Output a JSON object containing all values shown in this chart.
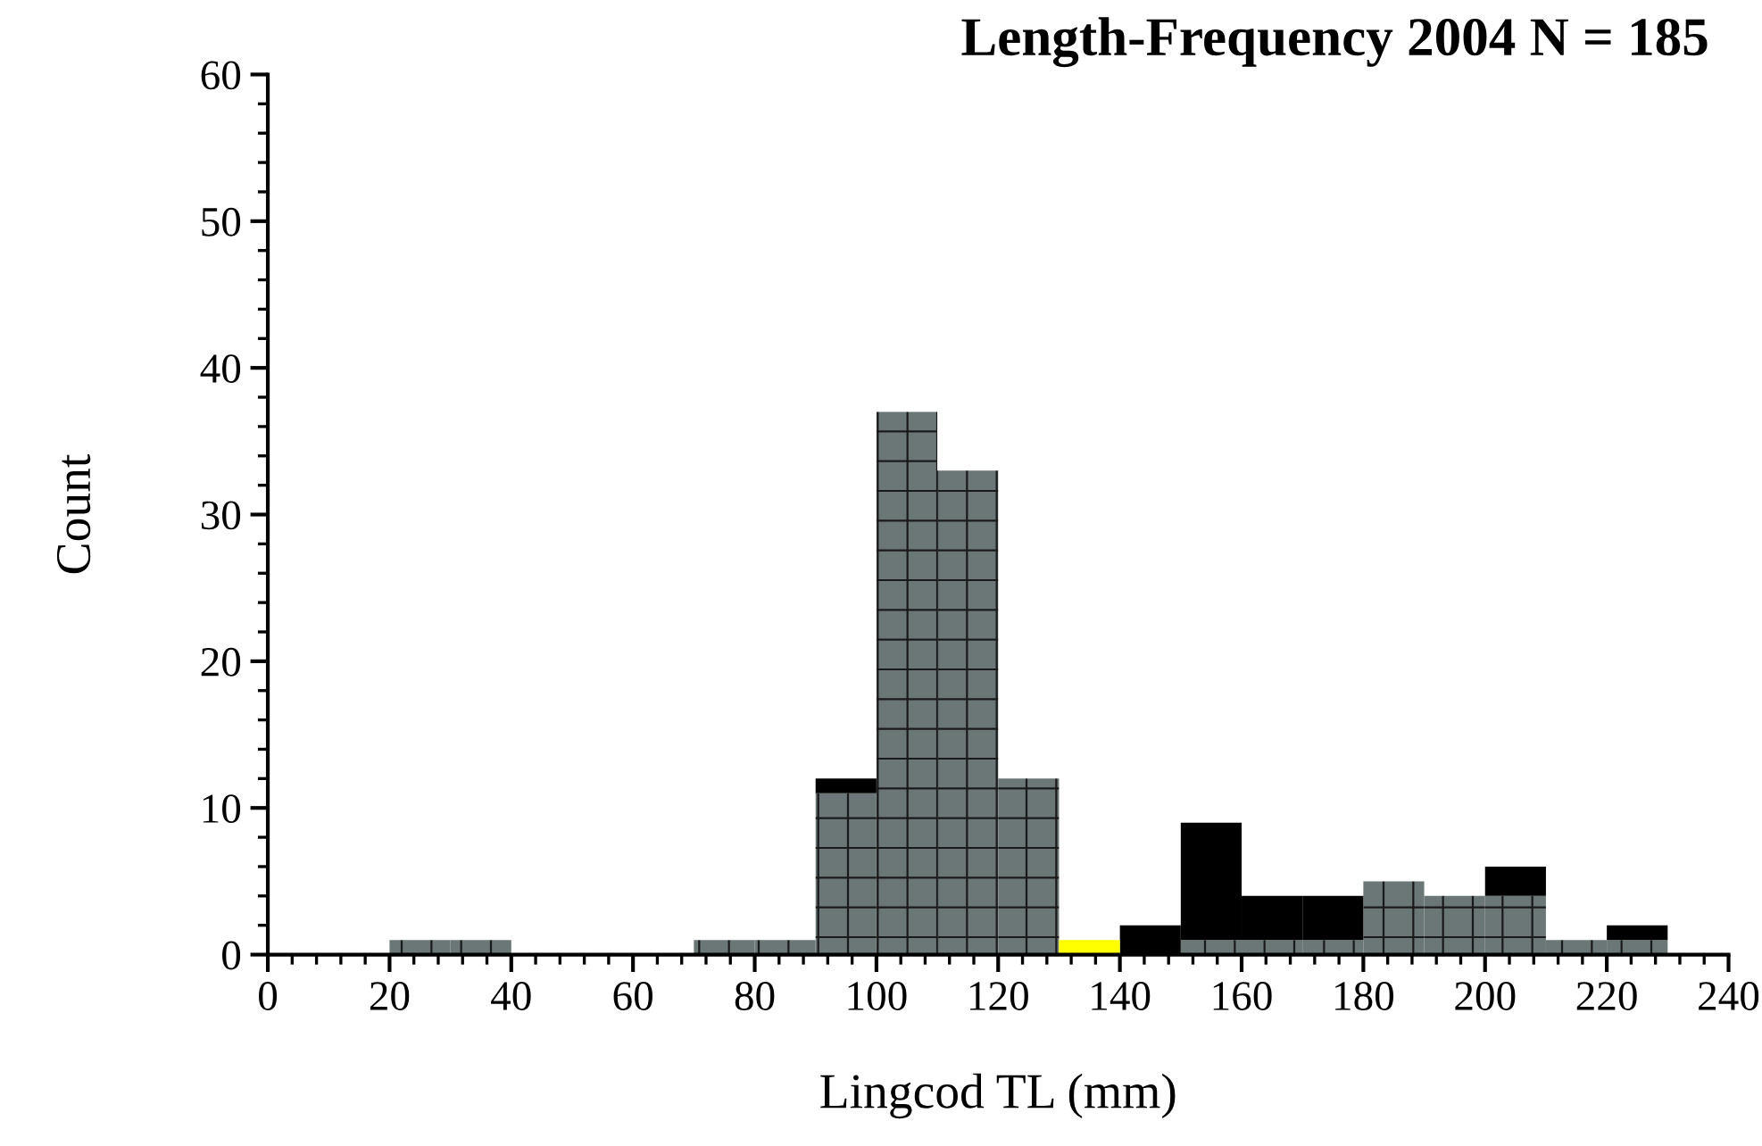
{
  "chart_data": {
    "type": "bar",
    "title": "Length-Frequency 2004 N = 185",
    "xlabel": "Lingcod TL (mm)",
    "ylabel": "Count",
    "x": [
      25,
      35,
      45,
      55,
      65,
      75,
      85,
      95,
      105,
      115,
      125,
      135,
      145,
      155,
      165,
      175,
      185,
      195,
      205,
      215,
      225
    ],
    "stacked": true,
    "series": [
      {
        "color": "#6b7676",
        "values": [
          1,
          1,
          0,
          0,
          0,
          1,
          1,
          11,
          37,
          33,
          12,
          0,
          0,
          1,
          1,
          1,
          5,
          4,
          4,
          1,
          1
        ]
      },
      {
        "color": "#000000",
        "values": [
          null,
          null,
          null,
          null,
          null,
          null,
          null,
          1,
          null,
          null,
          null,
          null,
          2,
          8,
          3,
          3,
          null,
          null,
          2,
          null,
          1
        ]
      },
      {
        "color": "#ffff00",
        "values": [
          null,
          null,
          null,
          null,
          null,
          null,
          null,
          null,
          null,
          null,
          null,
          1,
          null,
          null,
          null,
          null,
          null,
          null,
          null,
          null,
          null
        ]
      }
    ],
    "xlim": [
      0,
      240
    ],
    "xticks": [
      0,
      20,
      40,
      60,
      80,
      100,
      120,
      140,
      160,
      180,
      200,
      220,
      240
    ],
    "ylim": [
      0,
      60
    ],
    "yticks": [
      0,
      10,
      20,
      30,
      40,
      50,
      60
    ],
    "grid": false,
    "legend": false
  }
}
